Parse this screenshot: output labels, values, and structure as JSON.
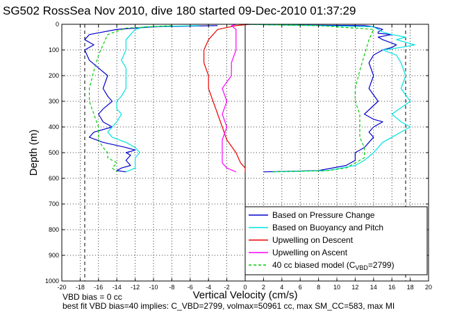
{
  "chart_data": {
    "type": "line",
    "title": "SG502 RossSea Nov 2010, dive 180 started 09-Dec-2010 01:37:29",
    "xlabel": "Vertical Velocity (cm/s)",
    "ylabel": "Depth (m)",
    "xlim": [
      -20,
      20
    ],
    "ylim": [
      0,
      1000
    ],
    "y_reversed": true,
    "x_ticks": [
      -20,
      -18,
      -16,
      -14,
      -12,
      -10,
      -8,
      -6,
      -4,
      -2,
      0,
      2,
      4,
      6,
      8,
      10,
      12,
      14,
      16,
      18,
      20
    ],
    "y_ticks": [
      0,
      100,
      200,
      300,
      400,
      500,
      600,
      700,
      800,
      900,
      1000
    ],
    "grid": true,
    "legend_position": "bottom-right",
    "vertical_reference_lines": [
      -17.5,
      17.5
    ],
    "series": [
      {
        "name": "Based on Pressure Change",
        "color": "#0000cc",
        "segments": [
          {
            "x": [
              -3,
              -10,
              -14,
              -17,
              -17.5,
              -16.5,
              -17.5,
              -17,
              -16,
              -15,
              -15.5,
              -15,
              -14.5,
              -15.5,
              -16,
              -15.5,
              -14.5,
              -16.5,
              -17,
              -15.5,
              -13,
              -12,
              -13,
              -12.5,
              -13,
              -12.5,
              -13.5,
              -14,
              -13
            ],
            "y": [
              5,
              10,
              20,
              40,
              60,
              80,
              100,
              140,
              170,
              200,
              250,
              280,
              300,
              330,
              350,
              380,
              400,
              420,
              440,
              460,
              480,
              490,
              500,
              510,
              530,
              550,
              560,
              570,
              575
            ]
          },
          {
            "x": [
              2,
              8,
              11,
              12,
              12,
              13,
              13.5,
              14,
              13.5,
              14,
              15,
              14,
              13,
              14.5,
              13.5,
              14,
              13.5,
              14,
              15,
              16,
              16.5,
              15,
              14.5,
              16,
              14.5,
              14.5,
              15,
              14.5,
              14,
              13,
              5,
              0
            ],
            "y": [
              575,
              570,
              550,
              530,
              500,
              480,
              460,
              440,
              420,
              400,
              380,
              370,
              350,
              300,
              250,
              200,
              150,
              120,
              100,
              90,
              80,
              60,
              50,
              40,
              35,
              30,
              20,
              15,
              10,
              5,
              3,
              0
            ]
          }
        ]
      },
      {
        "name": "Based on Buoyancy and Pitch",
        "color": "#00e0e0",
        "segments": [
          {
            "x": [
              -5,
              -11,
              -12,
              -12.5,
              -13,
              -13,
              -13,
              -13.5,
              -13,
              -13,
              -13,
              -13.5,
              -14,
              -14,
              -13.5,
              -14,
              -14.5,
              -15,
              -14.5,
              -13,
              -12,
              -11.5,
              -12,
              -12,
              -12,
              -13
            ],
            "y": [
              5,
              10,
              20,
              40,
              60,
              80,
              100,
              140,
              170,
              200,
              250,
              280,
              300,
              330,
              350,
              380,
              400,
              420,
              440,
              460,
              480,
              500,
              520,
              540,
              560,
              575
            ]
          },
          {
            "x": [
              3,
              9,
              12,
              13,
              14,
              14.5,
              15,
              16,
              17,
              18,
              17,
              16,
              18,
              17,
              17.5,
              17,
              16.5,
              15,
              17,
              18.5,
              17.5,
              16.5,
              17.5,
              16,
              15,
              14.5,
              14,
              5,
              0
            ],
            "y": [
              575,
              570,
              550,
              530,
              500,
              480,
              460,
              440,
              420,
              400,
              380,
              350,
              300,
              250,
              200,
              150,
              120,
              100,
              90,
              80,
              70,
              60,
              50,
              40,
              30,
              20,
              10,
              3,
              0
            ]
          }
        ]
      },
      {
        "name": "Upwelling on Descent",
        "color": "#ee0000",
        "segments": [
          {
            "x": [
              0.5,
              -1,
              -3,
              -4,
              -4.5,
              -4.5,
              -4,
              -4,
              -3.5,
              -3,
              -2.5,
              -2,
              -1,
              -0.5,
              0,
              0
            ],
            "y": [
              0,
              5,
              20,
              60,
              100,
              150,
              200,
              250,
              300,
              350,
              400,
              450,
              500,
              540,
              560,
              575
            ]
          }
        ]
      },
      {
        "name": "Upwelling on Ascent",
        "color": "#ff00ff",
        "segments": [
          {
            "x": [
              -1,
              -2,
              -2.5,
              -2.5,
              -2.5,
              -2,
              -2.5,
              -2,
              -2.5,
              -1.5,
              -1.5,
              -1,
              -1,
              -1,
              -1.5,
              -1
            ],
            "y": [
              575,
              560,
              540,
              500,
              450,
              400,
              350,
              300,
              250,
              200,
              150,
              100,
              60,
              20,
              5,
              0
            ]
          }
        ]
      },
      {
        "name": "40 cc biased model (C_VBD=2799)",
        "color": "#00cc00",
        "dashed": true,
        "segments": [
          {
            "x": [
              -8,
              -13,
              -15,
              -15.5,
              -16,
              -16.5,
              -17,
              -17,
              -16.5,
              -16,
              -16,
              -15.5,
              -15,
              -15,
              -14,
              -14.5,
              -14
            ],
            "y": [
              5,
              15,
              40,
              80,
              120,
              180,
              250,
              300,
              350,
              400,
              450,
              480,
              500,
              520,
              540,
              560,
              575
            ]
          },
          {
            "x": [
              3,
              9,
              11,
              12,
              13,
              13,
              12.5,
              12.5,
              12.5,
              12,
              12,
              12.5,
              13,
              13.5,
              14,
              8,
              0
            ],
            "y": [
              575,
              570,
              560,
              540,
              520,
              480,
              440,
              400,
              350,
              300,
              250,
              180,
              120,
              60,
              20,
              5,
              0
            ]
          }
        ]
      }
    ],
    "legend": [
      {
        "label": "Based on Pressure Change",
        "color": "#0000cc",
        "dashed": false
      },
      {
        "label": "Based on Buoyancy and Pitch",
        "color": "#00e0e0",
        "dashed": false
      },
      {
        "label": "Upwelling on Descent",
        "color": "#ee0000",
        "dashed": false
      },
      {
        "label": "Upwelling on Ascent",
        "color": "#ff00ff",
        "dashed": false
      },
      {
        "label": "40 cc biased model (C",
        "sub": "VBD",
        "suffix": "=2799)",
        "color": "#00cc00",
        "dashed": true
      }
    ],
    "annotations": [
      "VBD bias = 0 cc",
      "best fit VBD bias=40 implies: C_VBD=2799, volmax=50961 cc, max SM_CC=583, max MI"
    ]
  }
}
